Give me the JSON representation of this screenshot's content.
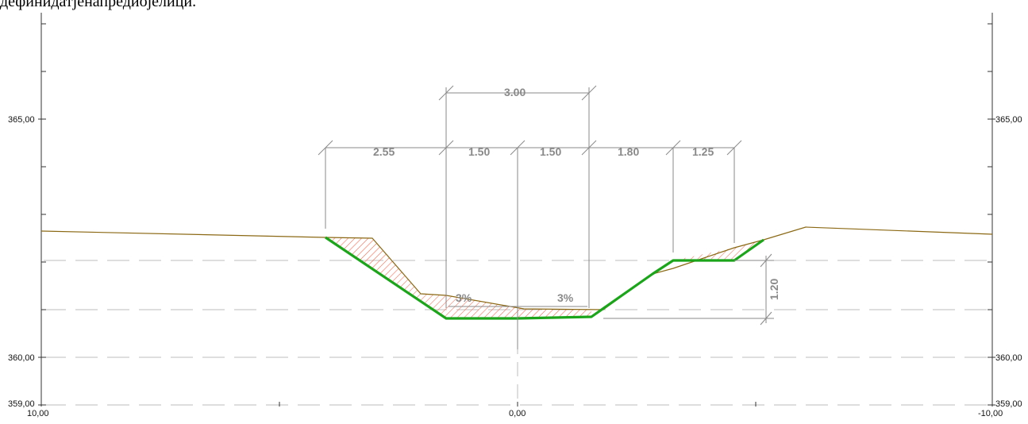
{
  "header_text": "дефинидатјенапредиојелици.",
  "left_axis": {
    "labels": [
      "365,00",
      "360,00",
      "359,00"
    ]
  },
  "right_axis": {
    "labels": [
      "365,00",
      "360,00",
      "359,00"
    ]
  },
  "bottom_axis": {
    "labels": [
      "10,00",
      "0,00",
      "-10,00"
    ]
  },
  "dimensions": {
    "top": "3.00",
    "row": [
      "2.55",
      "1.50",
      "1.50",
      "1.80",
      "1.25"
    ],
    "vertical": "1.20"
  },
  "slopes": [
    "3%",
    "3%"
  ],
  "colors": {
    "terrain": "#8b6914",
    "design": "#1aa51a",
    "hatch": "#ff5a3c",
    "dimension": "#8a8a8a",
    "dashed_lines": "#bdbdbd"
  }
}
